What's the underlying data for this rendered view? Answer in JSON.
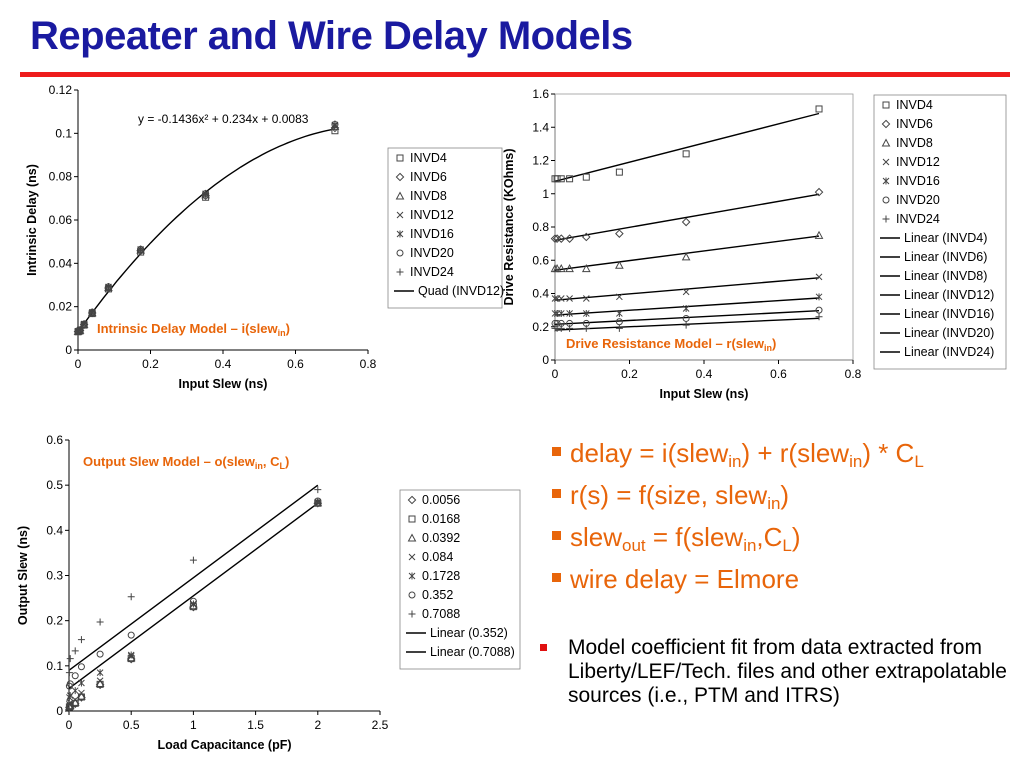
{
  "slide": {
    "title": "Repeater and Wire Delay Models"
  },
  "bullets": [
    {
      "parts": [
        {
          "t": "delay = i(slew"
        },
        {
          "t": "in",
          "sub": true
        },
        {
          "t": ") + r(slew"
        },
        {
          "t": "in",
          "sub": true
        },
        {
          "t": ") * C"
        },
        {
          "t": "L",
          "sub": true
        }
      ]
    },
    {
      "parts": [
        {
          "t": "r(s) = f(size, slew"
        },
        {
          "t": "in",
          "sub": true
        },
        {
          "t": ")"
        }
      ]
    },
    {
      "parts": [
        {
          "t": "slew"
        },
        {
          "t": "out",
          "sub": true
        },
        {
          "t": " = f(slew"
        },
        {
          "t": "in",
          "sub": true
        },
        {
          "t": ",C"
        },
        {
          "t": "L",
          "sub": true
        },
        {
          "t": ")"
        }
      ]
    },
    {
      "parts": [
        {
          "t": "wire delay = Elmore"
        }
      ]
    }
  ],
  "note": {
    "text": "Model coefficient fit from data extracted from Liberty/LEF/Tech. files and other extrapolatable sources (i.e., PTM and ITRS)"
  },
  "colors": {
    "title": "#1a1aa0",
    "rule": "#ee1c1c",
    "accent": "#e8650a",
    "marker": "#444444"
  },
  "chart_data": [
    {
      "id": "intrinsic",
      "type": "scatter",
      "xlabel": "Input Slew (ns)",
      "ylabel": "Intrinsic Delay (ns)",
      "xlim": [
        0,
        0.8
      ],
      "ylim": [
        0,
        0.12
      ],
      "xticks": [
        "0",
        "0.2",
        "0.4",
        "0.6",
        "0.8"
      ],
      "yticks": [
        "0",
        "0.02",
        "0.04",
        "0.06",
        "0.08",
        "0.1",
        "0.12"
      ],
      "annotation": "y = -0.1436x² + 0.234x + 0.0083",
      "model_label": {
        "main": "Intrinsic Delay Model – i(slew",
        "sub": "in",
        "end": ")"
      },
      "x": [
        0,
        0.0056,
        0.0168,
        0.0392,
        0.084,
        0.1728,
        0.352,
        0.7088
      ],
      "series": [
        {
          "name": "INVD4",
          "marker": "square",
          "y": [
            0.0084,
            0.0088,
            0.0115,
            0.0168,
            0.0282,
            0.0452,
            0.0705,
            0.1012
          ]
        },
        {
          "name": "INVD6",
          "marker": "diamond",
          "y": [
            0.0085,
            0.009,
            0.0117,
            0.0171,
            0.0286,
            0.0458,
            0.0712,
            0.1025
          ]
        },
        {
          "name": "INVD8",
          "marker": "triangle",
          "y": [
            0.0086,
            0.0091,
            0.0118,
            0.0172,
            0.0288,
            0.0461,
            0.0716,
            0.1032
          ]
        },
        {
          "name": "INVD12",
          "marker": "x",
          "y": [
            0.0086,
            0.0092,
            0.0119,
            0.0173,
            0.029,
            0.0463,
            0.0719,
            0.1036
          ]
        },
        {
          "name": "INVD16",
          "marker": "star",
          "y": [
            0.0087,
            0.0092,
            0.012,
            0.0174,
            0.0291,
            0.0464,
            0.0721,
            0.1039
          ]
        },
        {
          "name": "INVD20",
          "marker": "circle",
          "y": [
            0.0087,
            0.0093,
            0.012,
            0.0175,
            0.0292,
            0.0465,
            0.0722,
            0.1041
          ]
        },
        {
          "name": "INVD24",
          "marker": "plus",
          "y": [
            0.0088,
            0.0093,
            0.0121,
            0.0175,
            0.0293,
            0.0466,
            0.0723,
            0.1043
          ]
        }
      ],
      "fits": [
        {
          "name": "Quad (INVD12)",
          "kind": "quad",
          "coef": [
            -0.1436,
            0.234,
            0.0083
          ],
          "range": [
            0,
            0.7088
          ]
        }
      ]
    },
    {
      "id": "drive",
      "type": "scatter",
      "xlabel": "Input Slew (ns)",
      "ylabel": "Drive Resistance (KOhms)",
      "xlim": [
        0,
        0.8
      ],
      "ylim": [
        0,
        1.6
      ],
      "xticks": [
        "0",
        "0.2",
        "0.4",
        "0.6",
        "0.8"
      ],
      "yticks": [
        "0",
        "0.2",
        "0.4",
        "0.6",
        "0.8",
        "1",
        "1.2",
        "1.4",
        "1.6"
      ],
      "model_label": {
        "main": "Drive Resistance Model – r(slew",
        "sub": "in",
        "end": ")"
      },
      "x": [
        0,
        0.0056,
        0.0168,
        0.0392,
        0.084,
        0.1728,
        0.352,
        0.7088
      ],
      "series": [
        {
          "name": "INVD4",
          "marker": "square",
          "y": [
            1.09,
            1.09,
            1.09,
            1.09,
            1.1,
            1.13,
            1.24,
            1.51
          ]
        },
        {
          "name": "INVD6",
          "marker": "diamond",
          "y": [
            0.73,
            0.73,
            0.73,
            0.73,
            0.74,
            0.76,
            0.83,
            1.01
          ]
        },
        {
          "name": "INVD8",
          "marker": "triangle",
          "y": [
            0.55,
            0.55,
            0.55,
            0.55,
            0.55,
            0.57,
            0.62,
            0.75
          ]
        },
        {
          "name": "INVD12",
          "marker": "x",
          "y": [
            0.37,
            0.37,
            0.37,
            0.37,
            0.37,
            0.38,
            0.41,
            0.5
          ]
        },
        {
          "name": "INVD16",
          "marker": "star",
          "y": [
            0.28,
            0.28,
            0.28,
            0.28,
            0.28,
            0.28,
            0.31,
            0.38
          ]
        },
        {
          "name": "INVD20",
          "marker": "circle",
          "y": [
            0.22,
            0.22,
            0.22,
            0.22,
            0.22,
            0.23,
            0.25,
            0.3
          ]
        },
        {
          "name": "INVD24",
          "marker": "plus",
          "y": [
            0.19,
            0.19,
            0.19,
            0.19,
            0.19,
            0.19,
            0.21,
            0.26
          ]
        }
      ],
      "fits": [
        {
          "name": "Linear (INVD4)",
          "kind": "linear",
          "coef": [
            0.575,
            1.075
          ],
          "range": [
            0,
            0.7088
          ]
        },
        {
          "name": "Linear (INVD6)",
          "kind": "linear",
          "coef": [
            0.39,
            0.72
          ],
          "range": [
            0,
            0.7088
          ]
        },
        {
          "name": "Linear (INVD8)",
          "kind": "linear",
          "coef": [
            0.29,
            0.54
          ],
          "range": [
            0,
            0.7088
          ]
        },
        {
          "name": "Linear (INVD12)",
          "kind": "linear",
          "coef": [
            0.19,
            0.36
          ],
          "range": [
            0,
            0.7088
          ]
        },
        {
          "name": "Linear (INVD16)",
          "kind": "linear",
          "coef": [
            0.145,
            0.27
          ],
          "range": [
            0,
            0.7088
          ]
        },
        {
          "name": "Linear (INVD20)",
          "kind": "linear",
          "coef": [
            0.115,
            0.215
          ],
          "range": [
            0,
            0.7088
          ]
        },
        {
          "name": "Linear (INVD24)",
          "kind": "linear",
          "coef": [
            0.1,
            0.18
          ],
          "range": [
            0,
            0.7088
          ]
        }
      ]
    },
    {
      "id": "outslew",
      "type": "scatter",
      "xlabel": "Load Capacitance (pF)",
      "ylabel": "Output Slew (ns)",
      "xlim": [
        0,
        2.5
      ],
      "ylim": [
        0,
        0.6
      ],
      "xticks": [
        "0",
        "0.5",
        "1",
        "1.5",
        "2",
        "2.5"
      ],
      "yticks": [
        "0",
        "0.1",
        "0.2",
        "0.3",
        "0.4",
        "0.5",
        "0.6"
      ],
      "model_label": {
        "main": "Output Slew Model – o(slew",
        "sub": "in",
        "mid": ", C",
        "sub2": "L",
        "end": ")"
      },
      "x": [
        0.0032,
        0.01,
        0.05,
        0.1,
        0.25,
        0.5,
        1.0,
        2.0
      ],
      "series": [
        {
          "name": "0.0056",
          "marker": "diamond",
          "y": [
            0.008,
            0.01,
            0.016,
            0.03,
            0.058,
            0.115,
            0.23,
            0.46
          ]
        },
        {
          "name": "0.0168",
          "marker": "square",
          "y": [
            0.009,
            0.011,
            0.017,
            0.031,
            0.059,
            0.116,
            0.231,
            0.46
          ]
        },
        {
          "name": "0.0392",
          "marker": "triangle",
          "y": [
            0.01,
            0.012,
            0.019,
            0.033,
            0.061,
            0.118,
            0.233,
            0.461
          ]
        },
        {
          "name": "0.084",
          "marker": "x",
          "y": [
            0.015,
            0.018,
            0.025,
            0.04,
            0.067,
            0.121,
            0.236,
            0.462
          ]
        },
        {
          "name": "0.1728",
          "marker": "star",
          "y": [
            0.03,
            0.034,
            0.045,
            0.062,
            0.085,
            0.124,
            0.237,
            0.463
          ]
        },
        {
          "name": "0.352",
          "marker": "circle",
          "y": [
            0.055,
            0.06,
            0.078,
            0.098,
            0.126,
            0.168,
            0.243,
            0.465
          ]
        },
        {
          "name": "0.7088",
          "marker": "plus",
          "y": [
            0.085,
            0.116,
            0.133,
            0.158,
            0.197,
            0.253,
            0.334,
            0.49
          ]
        }
      ],
      "fits": [
        {
          "name": "Linear (0.352)",
          "kind": "linear",
          "coef": [
            0.205,
            0.05
          ],
          "range": [
            0,
            2.0
          ]
        },
        {
          "name": "Linear (0.7088)",
          "kind": "linear",
          "coef": [
            0.205,
            0.09
          ],
          "range": [
            0,
            2.0
          ]
        }
      ]
    }
  ]
}
